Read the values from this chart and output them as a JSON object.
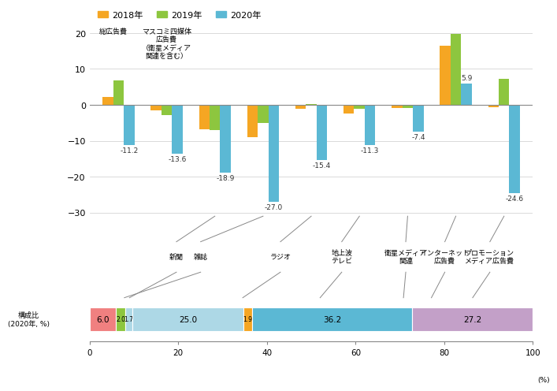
{
  "values_2018": [
    2.1,
    -1.6,
    -6.9,
    -8.9,
    -1.2,
    -2.4,
    -0.8,
    16.5,
    -0.6
  ],
  "values_2019": [
    6.8,
    -2.8,
    -7.0,
    -5.0,
    0.2,
    -1.1,
    -0.8,
    19.7,
    7.3
  ],
  "values_2020": [
    -11.2,
    -13.6,
    -18.9,
    -27.0,
    -15.4,
    -11.3,
    -7.4,
    5.9,
    -24.6
  ],
  "labels_2020": [
    "-11.2",
    "-13.6",
    "-18.9",
    "-27.0",
    "-15.4",
    "-11.3",
    "-7.4",
    "5.9",
    "-24.6"
  ],
  "color_2018": "#F5A623",
  "color_2019": "#8DC63F",
  "color_2020": "#5BB8D4",
  "bar_width": 0.22,
  "ylim": [
    -31,
    22
  ],
  "yticks": [
    -30,
    -20,
    -10,
    0,
    10,
    20
  ],
  "legend_labels": [
    "2018年",
    "2019年",
    "2020年"
  ],
  "cat0_label": "総広告費",
  "cat1_label": "マスコミ四媒体\n広告費\n（衛星メディア\n関連を含む）",
  "cat_labels_middle": [
    "新聞",
    "雑誌",
    "ラジオ",
    "地上波\nテレビ",
    "衛星メディア\n関連",
    "インターネット\n広告費",
    "プロモーション\nメディア広告費"
  ],
  "stacked_values": [
    6.0,
    2.0,
    1.7,
    25.0,
    1.9,
    36.2,
    27.2
  ],
  "stacked_labels": [
    "6.0",
    "2.0",
    "1.7",
    "25.0",
    "1.9",
    "36.2",
    "27.2"
  ],
  "stacked_colors": [
    "#F08080",
    "#8DC63F",
    "#ADD8E6",
    "#ADD8E6",
    "#F5A623",
    "#5BB8D4",
    "#C3A0C8"
  ],
  "stacked_connector_x": [
    9.0,
    7.85,
    34.55,
    52.0,
    70.8,
    77.1,
    86.4
  ],
  "ylabel_stacked": "構成比\n(2020年, %)",
  "xtick_stacked": [
    0,
    20,
    40,
    60,
    80,
    100
  ],
  "grid_color": "#cccccc",
  "text_color": "#333333"
}
